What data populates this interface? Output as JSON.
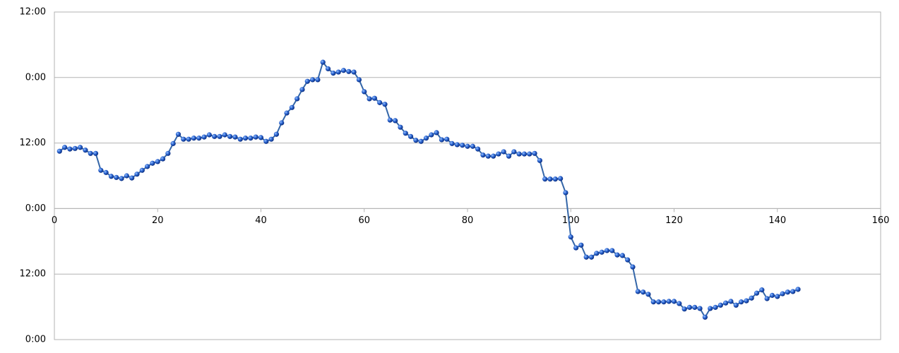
{
  "chart_data": {
    "type": "line",
    "x": [
      1,
      2,
      3,
      4,
      5,
      6,
      7,
      8,
      9,
      10,
      11,
      12,
      13,
      14,
      15,
      16,
      17,
      18,
      19,
      20,
      21,
      22,
      23,
      24,
      25,
      26,
      27,
      28,
      29,
      30,
      31,
      32,
      33,
      34,
      35,
      36,
      37,
      38,
      39,
      40,
      41,
      42,
      43,
      44,
      45,
      46,
      47,
      48,
      49,
      50,
      51,
      52,
      53,
      54,
      55,
      56,
      57,
      58,
      59,
      60,
      61,
      62,
      63,
      64,
      65,
      66,
      67,
      68,
      69,
      70,
      71,
      72,
      73,
      74,
      75,
      76,
      77,
      78,
      79,
      80,
      81,
      82,
      83,
      84,
      85,
      86,
      87,
      88,
      89,
      90,
      91,
      92,
      93,
      94,
      95,
      96,
      97,
      98,
      99,
      100,
      101,
      102,
      103,
      104,
      105,
      106,
      107,
      108,
      109,
      110,
      111,
      112,
      113,
      114,
      115,
      116,
      117,
      118,
      119,
      120,
      121,
      122,
      123,
      124,
      125,
      126,
      127,
      128,
      129,
      130,
      131,
      132,
      133,
      134,
      135,
      136,
      137,
      138,
      139,
      140,
      141,
      142,
      143,
      144
    ],
    "series": [
      {
        "color": "#2a64b8",
        "line_color": "#3466a8",
        "values": [
          34.5,
          35.2,
          34.9,
          35.0,
          35.2,
          34.7,
          34.1,
          34.1,
          31.0,
          30.6,
          29.9,
          29.7,
          29.5,
          30.0,
          29.6,
          30.3,
          31.0,
          31.7,
          32.3,
          32.6,
          33.1,
          34.1,
          35.9,
          37.6,
          36.7,
          36.7,
          36.9,
          36.9,
          37.1,
          37.5,
          37.2,
          37.2,
          37.5,
          37.2,
          37.1,
          36.7,
          36.9,
          36.9,
          37.1,
          37.0,
          36.3,
          36.7,
          37.6,
          39.7,
          41.5,
          42.5,
          44.1,
          45.8,
          47.3,
          47.6,
          47.6,
          50.8,
          49.6,
          48.8,
          49.0,
          49.3,
          49.1,
          49.0,
          47.6,
          45.4,
          44.1,
          44.2,
          43.4,
          43.1,
          40.2,
          40.1,
          38.9,
          37.8,
          37.2,
          36.5,
          36.3,
          36.9,
          37.5,
          37.9,
          36.6,
          36.7,
          35.9,
          35.7,
          35.6,
          35.4,
          35.4,
          34.9,
          33.8,
          33.6,
          33.6,
          34.0,
          34.4,
          33.6,
          34.4,
          34.0,
          34.0,
          34.0,
          34.1,
          32.8,
          29.4,
          29.4,
          29.4,
          29.5,
          26.9,
          18.8,
          16.8,
          17.3,
          15.1,
          15.1,
          15.8,
          16.0,
          16.3,
          16.3,
          15.5,
          15.4,
          14.6,
          13.3,
          8.8,
          8.7,
          8.3,
          6.9,
          6.9,
          6.9,
          7.0,
          7.0,
          6.6,
          5.6,
          5.9,
          5.9,
          5.7,
          4.1,
          5.7,
          5.9,
          6.3,
          6.7,
          7.0,
          6.3,
          6.9,
          7.1,
          7.6,
          8.5,
          9.1,
          7.5,
          8.1,
          7.9,
          8.4,
          8.7,
          8.8,
          9.2
        ]
      }
    ],
    "xlim": [
      0,
      160
    ],
    "xticks": [
      0,
      20,
      40,
      60,
      80,
      100,
      120,
      140,
      160
    ],
    "ylim": [
      0,
      60
    ],
    "yticks": [
      {
        "value": 0,
        "label": "0:00"
      },
      {
        "value": 12,
        "label": "12:00"
      },
      {
        "value": 24,
        "label": "0:00"
      },
      {
        "value": 36,
        "label": "12:00"
      },
      {
        "value": 48,
        "label": "0:00"
      },
      {
        "value": 60,
        "label": "12:00"
      }
    ],
    "x_axis_crosses": 24,
    "grid": true
  }
}
